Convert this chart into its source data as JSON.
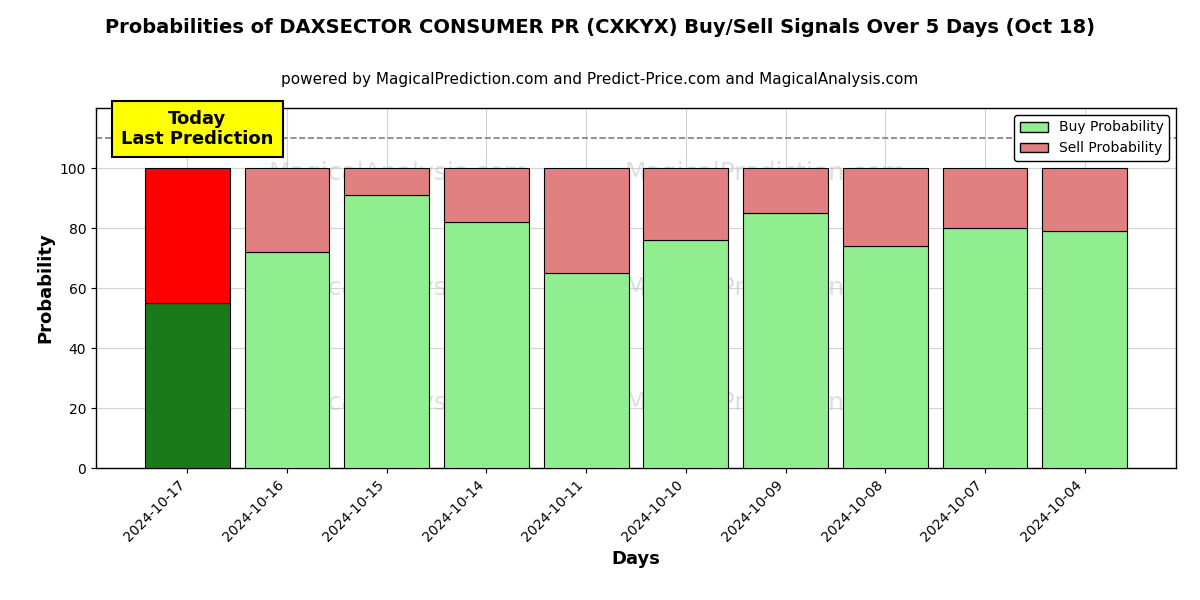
{
  "title": "Probabilities of DAXSECTOR CONSUMER PR (CXKYX) Buy/Sell Signals Over 5 Days (Oct 18)",
  "subtitle": "powered by MagicalPrediction.com and Predict-Price.com and MagicalAnalysis.com",
  "xlabel": "Days",
  "ylabel": "Probability",
  "dates": [
    "2024-10-17",
    "2024-10-16",
    "2024-10-15",
    "2024-10-14",
    "2024-10-11",
    "2024-10-10",
    "2024-10-09",
    "2024-10-08",
    "2024-10-07",
    "2024-10-04"
  ],
  "buy_values": [
    55,
    72,
    91,
    82,
    65,
    76,
    85,
    74,
    80,
    79
  ],
  "sell_values": [
    45,
    28,
    9,
    18,
    35,
    24,
    15,
    26,
    20,
    21
  ],
  "today_buy_color": "#1a7a1a",
  "today_sell_color": "#ff0000",
  "regular_buy_color": "#90EE90",
  "regular_sell_color": "#E08080",
  "bar_edge_color": "#000000",
  "ylim": [
    0,
    120
  ],
  "yticks": [
    0,
    20,
    40,
    60,
    80,
    100
  ],
  "dashed_line_y": 110,
  "annotation_text": "Today\nLast Prediction",
  "annotation_bg": "#ffff00",
  "legend_buy_label": "Buy Probability",
  "legend_sell_label": "Sell Probability",
  "figsize": [
    12.0,
    6.0
  ],
  "dpi": 100
}
